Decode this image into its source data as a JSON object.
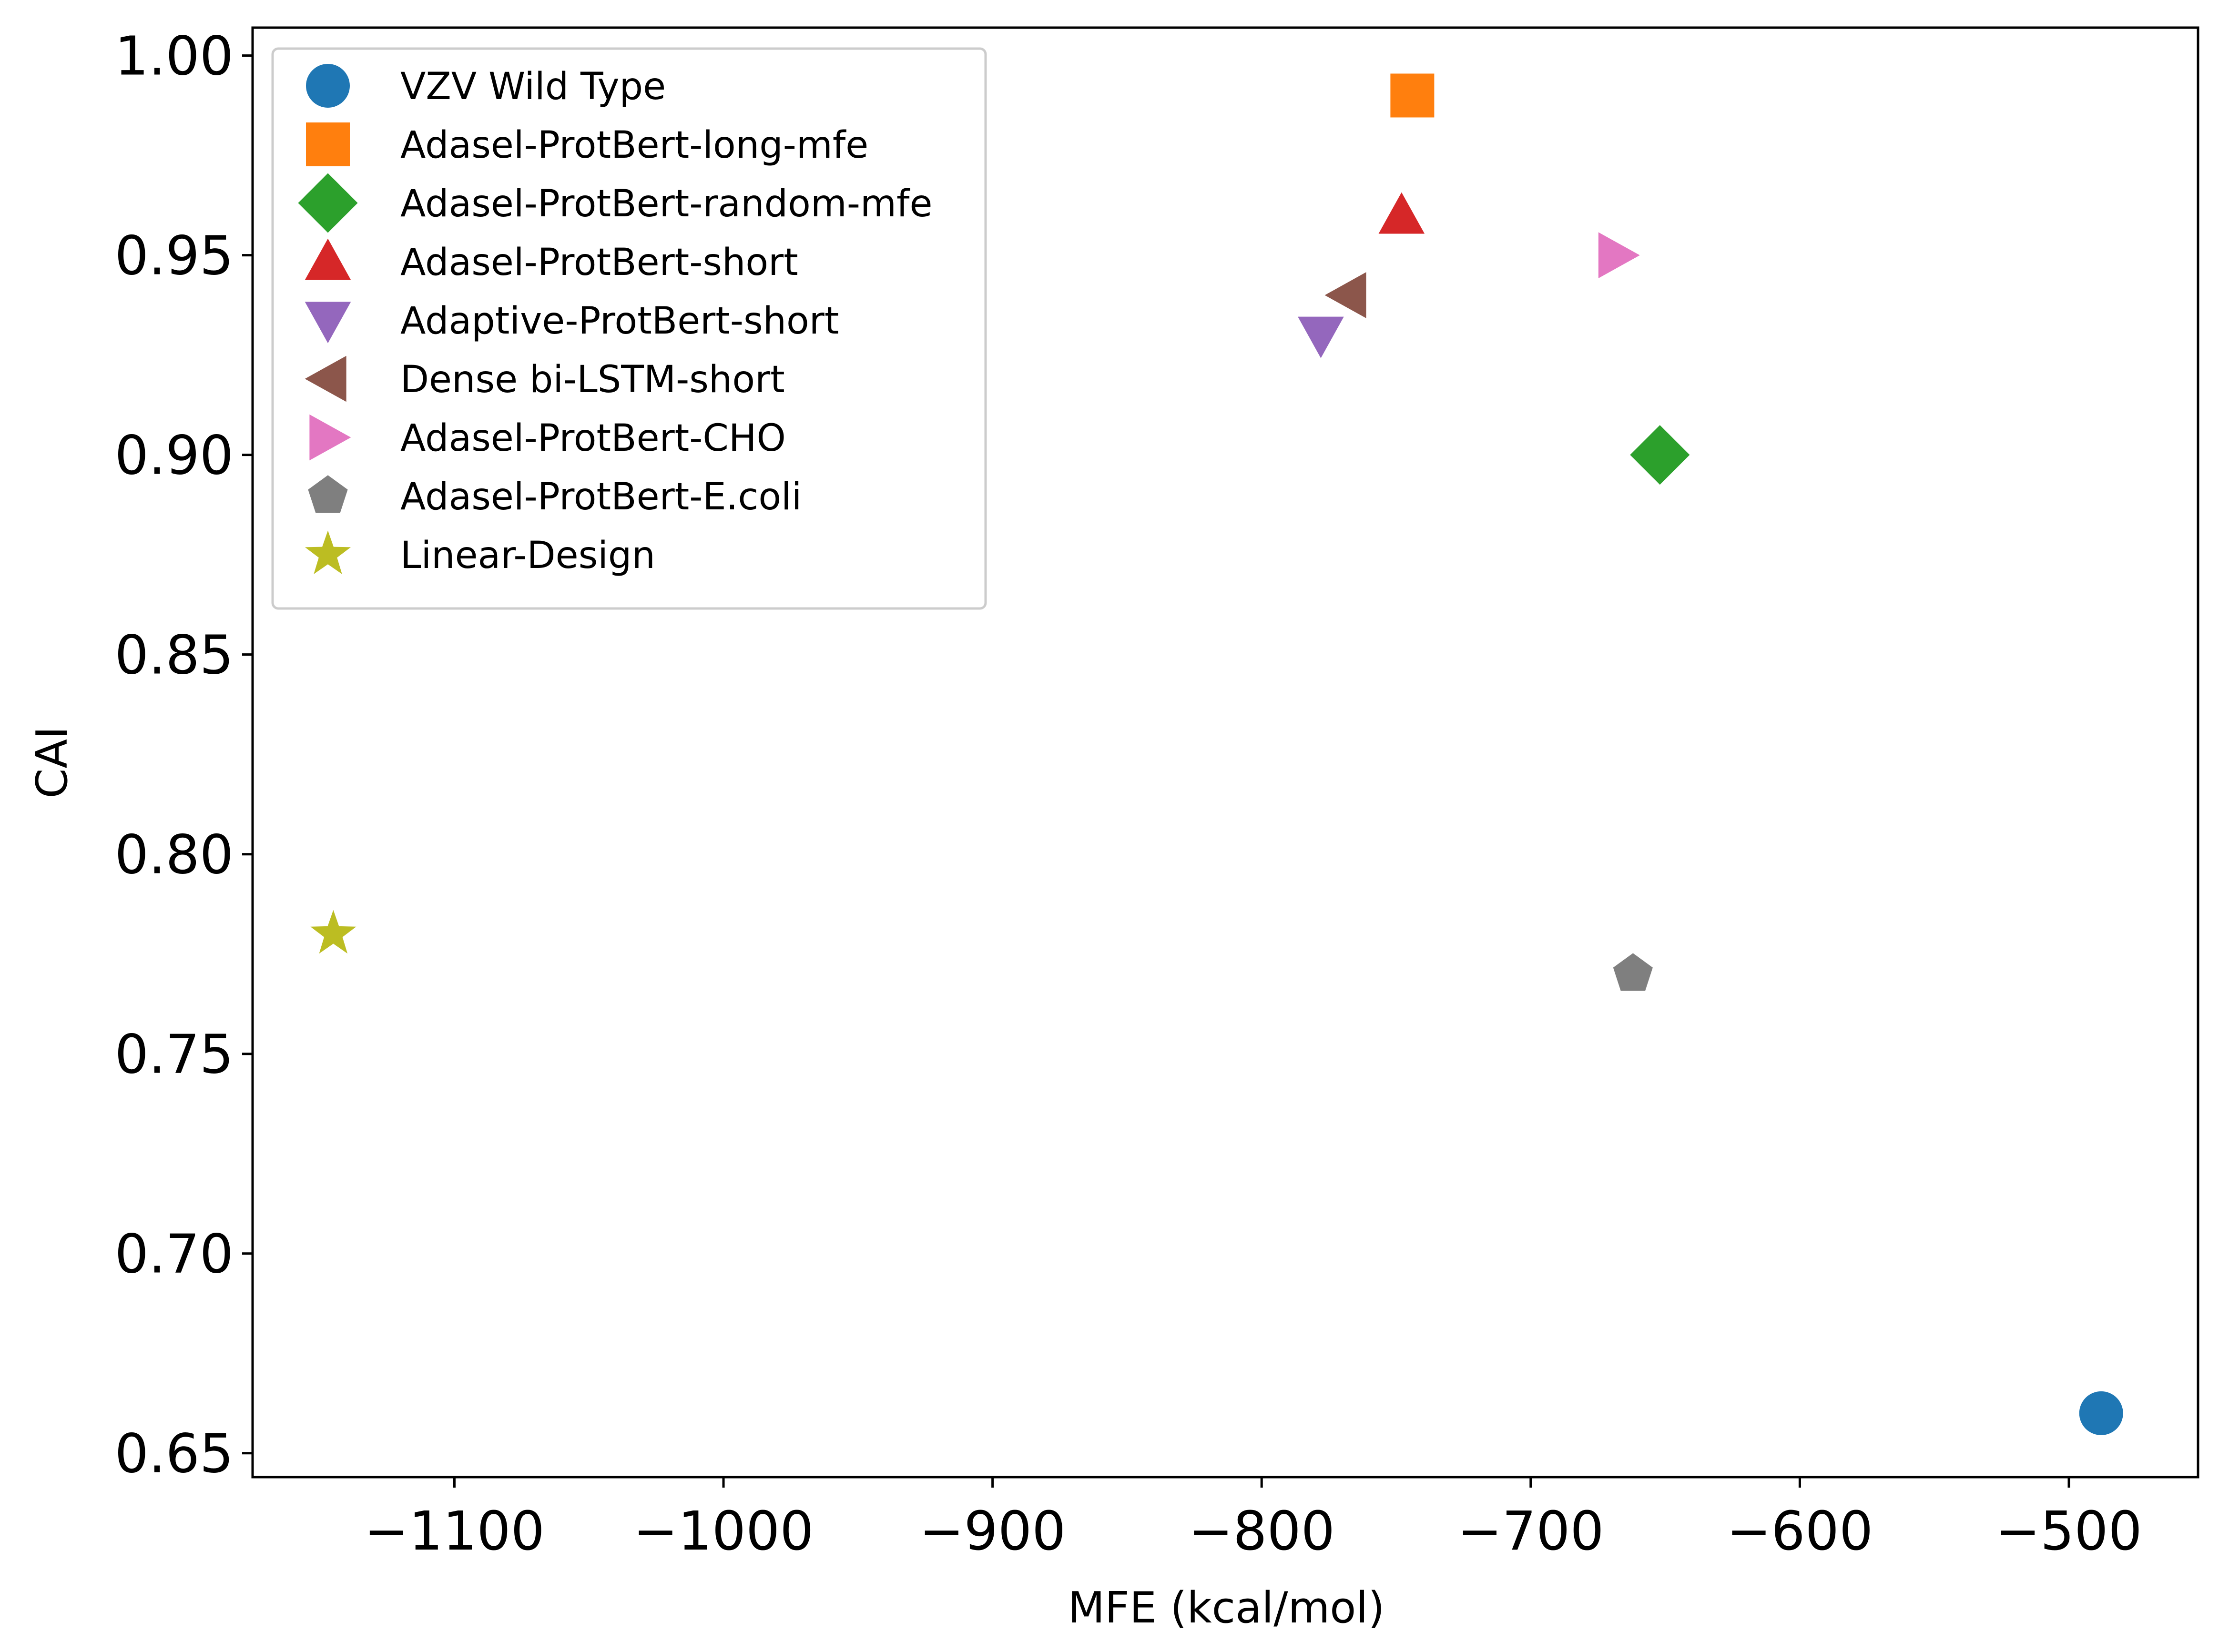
{
  "chart_data": {
    "type": "scatter",
    "title": "",
    "xlabel": "MFE (kcal/mol)",
    "ylabel": "CAI",
    "xlim": [
      -1175,
      -452
    ],
    "ylim": [
      0.644,
      1.007
    ],
    "grid": false,
    "legend_position": "top-left",
    "x_ticks": [
      -1100,
      -1000,
      -900,
      -800,
      -700,
      -600,
      -500
    ],
    "x_tick_labels": [
      "−1100",
      "−1000",
      "−900",
      "−800",
      "−700",
      "−600",
      "−500"
    ],
    "y_ticks": [
      0.65,
      0.7,
      0.75,
      0.8,
      0.85,
      0.9,
      0.95,
      1.0
    ],
    "y_tick_labels": [
      "0.65",
      "0.70",
      "0.75",
      "0.80",
      "0.85",
      "0.90",
      "0.95",
      "1.00"
    ],
    "series": [
      {
        "name": "VZV Wild Type",
        "marker": "circle",
        "color": "#1f77b4",
        "x": -488,
        "y": 0.66
      },
      {
        "name": "Adasel-ProtBert-long-mfe",
        "marker": "square",
        "color": "#ff7f0e",
        "x": -744,
        "y": 0.99
      },
      {
        "name": "Adasel-ProtBert-random-mfe",
        "marker": "diamond",
        "color": "#2ca02c",
        "x": -652,
        "y": 0.9
      },
      {
        "name": "Adasel-ProtBert-short",
        "marker": "triangle-up",
        "color": "#d62728",
        "x": -748,
        "y": 0.96
      },
      {
        "name": "Adaptive-ProtBert-short",
        "marker": "triangle-down",
        "color": "#9467bd",
        "x": -778,
        "y": 0.93
      },
      {
        "name": "Dense bi-LSTM-short",
        "marker": "triangle-left",
        "color": "#8c564b",
        "x": -768,
        "y": 0.94
      },
      {
        "name": "Adasel-ProtBert-CHO",
        "marker": "triangle-right",
        "color": "#e377c2",
        "x": -668,
        "y": 0.95
      },
      {
        "name": "Adasel-ProtBert-E.coli",
        "marker": "pentagon",
        "color": "#7f7f7f",
        "x": -662,
        "y": 0.77
      },
      {
        "name": "Linear-Design",
        "marker": "star",
        "color": "#bcbd22",
        "x": -1145,
        "y": 0.78
      }
    ]
  }
}
